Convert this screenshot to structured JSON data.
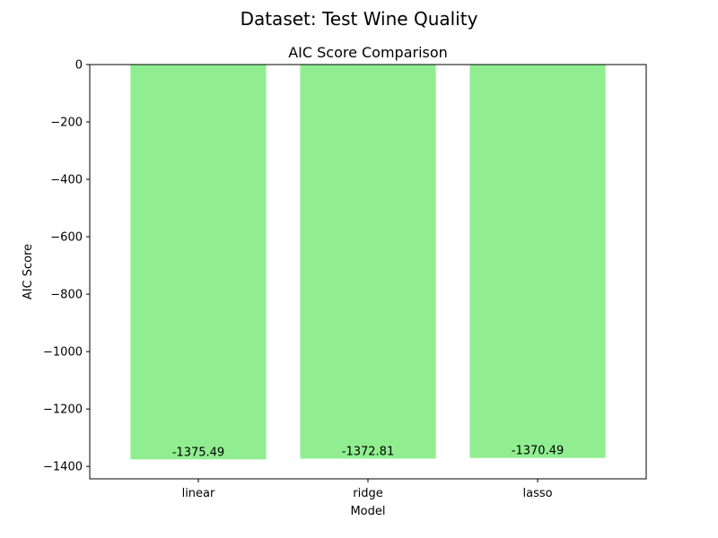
{
  "figure": {
    "suptitle": "Dataset: Test Wine Quality"
  },
  "chart_data": {
    "type": "bar",
    "title": "AIC Score Comparison",
    "xlabel": "Model",
    "ylabel": "AIC Score",
    "categories": [
      "linear",
      "ridge",
      "lasso"
    ],
    "values": [
      -1375.49,
      -1372.81,
      -1370.49
    ],
    "data_labels": [
      "-1375.49",
      "-1372.81",
      "-1370.49"
    ],
    "ylim": [
      -1443.26,
      0
    ],
    "yticks": [
      0,
      -200,
      -400,
      -600,
      -800,
      -1000,
      -1200,
      -1400
    ],
    "ytick_labels": [
      "0",
      "−200",
      "−400",
      "−600",
      "−800",
      "−1000",
      "−1200",
      "−1400"
    ],
    "bar_color": "#90ee90",
    "grid": false,
    "legend": "none"
  }
}
